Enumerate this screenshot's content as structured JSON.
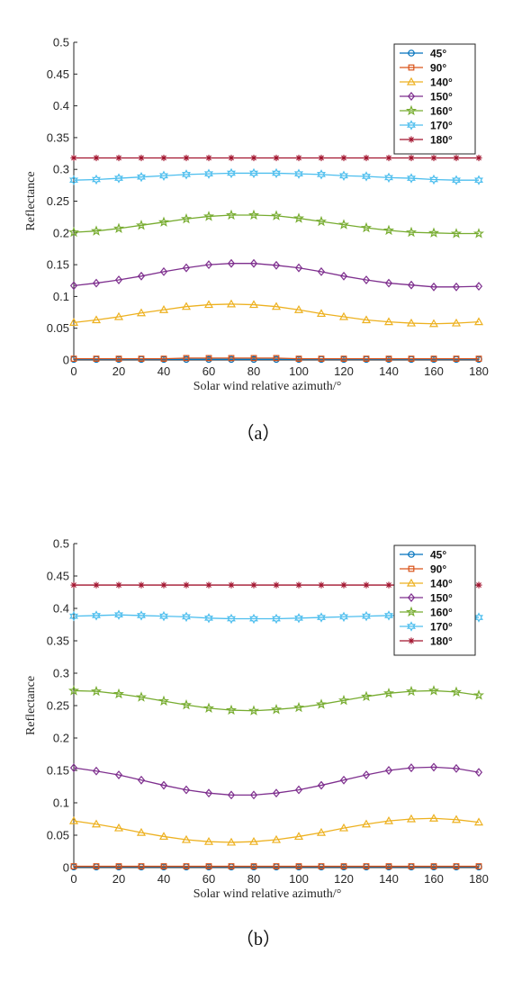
{
  "chart_data": [
    {
      "type": "line",
      "caption": "（a）",
      "xlabel": "Solar wind relative azimuth/°",
      "ylabel": "Reflectance",
      "xlim": [
        0,
        180
      ],
      "ylim": [
        0,
        0.5
      ],
      "x_ticks": [
        "0",
        "20",
        "40",
        "60",
        "80",
        "100",
        "120",
        "140",
        "160",
        "180"
      ],
      "y_ticks": [
        "0",
        "0.05",
        "0.1",
        "0.15",
        "0.2",
        "0.25",
        "0.3",
        "0.35",
        "0.4",
        "0.45",
        "0.5"
      ],
      "legend_position": "top-right",
      "x": [
        0,
        10,
        20,
        30,
        40,
        50,
        60,
        70,
        80,
        90,
        100,
        110,
        120,
        130,
        140,
        150,
        160,
        170,
        180
      ],
      "series": [
        {
          "name": "45°",
          "color": "#0072BD",
          "marker": "circle",
          "values": [
            0.001,
            0.001,
            0.001,
            0.001,
            0.001,
            0.001,
            0.001,
            0.001,
            0.001,
            0.001,
            0.001,
            0.001,
            0.001,
            0.001,
            0.001,
            0.001,
            0.001,
            0.001,
            0.001
          ]
        },
        {
          "name": "90°",
          "color": "#D95319",
          "marker": "square",
          "values": [
            0.002,
            0.002,
            0.002,
            0.002,
            0.002,
            0.003,
            0.003,
            0.003,
            0.003,
            0.003,
            0.002,
            0.002,
            0.002,
            0.002,
            0.002,
            0.002,
            0.002,
            0.002,
            0.002
          ]
        },
        {
          "name": "140°",
          "color": "#EDB120",
          "marker": "triangle",
          "values": [
            0.059,
            0.063,
            0.068,
            0.074,
            0.079,
            0.084,
            0.087,
            0.088,
            0.087,
            0.084,
            0.079,
            0.073,
            0.068,
            0.063,
            0.06,
            0.058,
            0.057,
            0.058,
            0.06
          ]
        },
        {
          "name": "150°",
          "color": "#7E2F8E",
          "marker": "diamond",
          "values": [
            0.117,
            0.121,
            0.126,
            0.132,
            0.139,
            0.145,
            0.15,
            0.152,
            0.152,
            0.149,
            0.145,
            0.139,
            0.132,
            0.126,
            0.121,
            0.118,
            0.115,
            0.115,
            0.116
          ]
        },
        {
          "name": "160°",
          "color": "#77AC30",
          "marker": "star",
          "values": [
            0.201,
            0.203,
            0.207,
            0.212,
            0.217,
            0.222,
            0.226,
            0.228,
            0.228,
            0.227,
            0.223,
            0.218,
            0.213,
            0.208,
            0.204,
            0.201,
            0.2,
            0.199,
            0.199
          ]
        },
        {
          "name": "170°",
          "color": "#4DBEEE",
          "marker": "hexagram",
          "values": [
            0.283,
            0.284,
            0.286,
            0.288,
            0.29,
            0.292,
            0.293,
            0.294,
            0.294,
            0.294,
            0.293,
            0.292,
            0.29,
            0.289,
            0.287,
            0.286,
            0.284,
            0.283,
            0.283
          ]
        },
        {
          "name": "180°",
          "color": "#A2142F",
          "marker": "asterisk",
          "values": [
            0.318,
            0.318,
            0.318,
            0.318,
            0.318,
            0.318,
            0.318,
            0.318,
            0.318,
            0.318,
            0.318,
            0.318,
            0.318,
            0.318,
            0.318,
            0.318,
            0.318,
            0.318,
            0.318
          ]
        }
      ]
    },
    {
      "type": "line",
      "caption": "（b）",
      "xlabel": "Solar wind relative azimuth/°",
      "ylabel": "Reflectance",
      "xlim": [
        0,
        180
      ],
      "ylim": [
        0,
        0.5
      ],
      "x_ticks": [
        "0",
        "20",
        "40",
        "60",
        "80",
        "100",
        "120",
        "140",
        "160",
        "180"
      ],
      "y_ticks": [
        "0",
        "0.05",
        "0.1",
        "0.15",
        "0.2",
        "0.25",
        "0.3",
        "0.35",
        "0.4",
        "0.45",
        "0.5"
      ],
      "legend_position": "top-right",
      "x": [
        0,
        10,
        20,
        30,
        40,
        50,
        60,
        70,
        80,
        90,
        100,
        110,
        120,
        130,
        140,
        150,
        160,
        170,
        180
      ],
      "series": [
        {
          "name": "45°",
          "color": "#0072BD",
          "marker": "circle",
          "values": [
            0.001,
            0.001,
            0.001,
            0.001,
            0.001,
            0.001,
            0.001,
            0.001,
            0.001,
            0.001,
            0.001,
            0.001,
            0.001,
            0.001,
            0.001,
            0.001,
            0.001,
            0.001,
            0.001
          ]
        },
        {
          "name": "90°",
          "color": "#D95319",
          "marker": "square",
          "values": [
            0.002,
            0.002,
            0.002,
            0.002,
            0.002,
            0.002,
            0.002,
            0.002,
            0.002,
            0.002,
            0.002,
            0.002,
            0.002,
            0.002,
            0.002,
            0.002,
            0.002,
            0.002,
            0.002
          ]
        },
        {
          "name": "140°",
          "color": "#EDB120",
          "marker": "triangle",
          "values": [
            0.072,
            0.067,
            0.061,
            0.054,
            0.048,
            0.043,
            0.04,
            0.039,
            0.04,
            0.043,
            0.048,
            0.054,
            0.061,
            0.067,
            0.072,
            0.075,
            0.076,
            0.074,
            0.07
          ]
        },
        {
          "name": "150°",
          "color": "#7E2F8E",
          "marker": "diamond",
          "values": [
            0.154,
            0.149,
            0.143,
            0.135,
            0.127,
            0.12,
            0.115,
            0.112,
            0.112,
            0.115,
            0.12,
            0.127,
            0.135,
            0.143,
            0.15,
            0.154,
            0.155,
            0.153,
            0.147
          ]
        },
        {
          "name": "160°",
          "color": "#77AC30",
          "marker": "star",
          "values": [
            0.273,
            0.272,
            0.268,
            0.263,
            0.257,
            0.251,
            0.246,
            0.243,
            0.242,
            0.244,
            0.247,
            0.252,
            0.258,
            0.264,
            0.269,
            0.272,
            0.273,
            0.271,
            0.266
          ]
        },
        {
          "name": "170°",
          "color": "#4DBEEE",
          "marker": "hexagram",
          "values": [
            0.388,
            0.389,
            0.39,
            0.389,
            0.388,
            0.387,
            0.385,
            0.384,
            0.384,
            0.384,
            0.385,
            0.386,
            0.387,
            0.388,
            0.389,
            0.389,
            0.388,
            0.387,
            0.386
          ]
        },
        {
          "name": "180°",
          "color": "#A2142F",
          "marker": "asterisk",
          "values": [
            0.436,
            0.436,
            0.436,
            0.436,
            0.436,
            0.436,
            0.436,
            0.436,
            0.436,
            0.436,
            0.436,
            0.436,
            0.436,
            0.436,
            0.436,
            0.436,
            0.436,
            0.436,
            0.436
          ]
        }
      ]
    }
  ]
}
